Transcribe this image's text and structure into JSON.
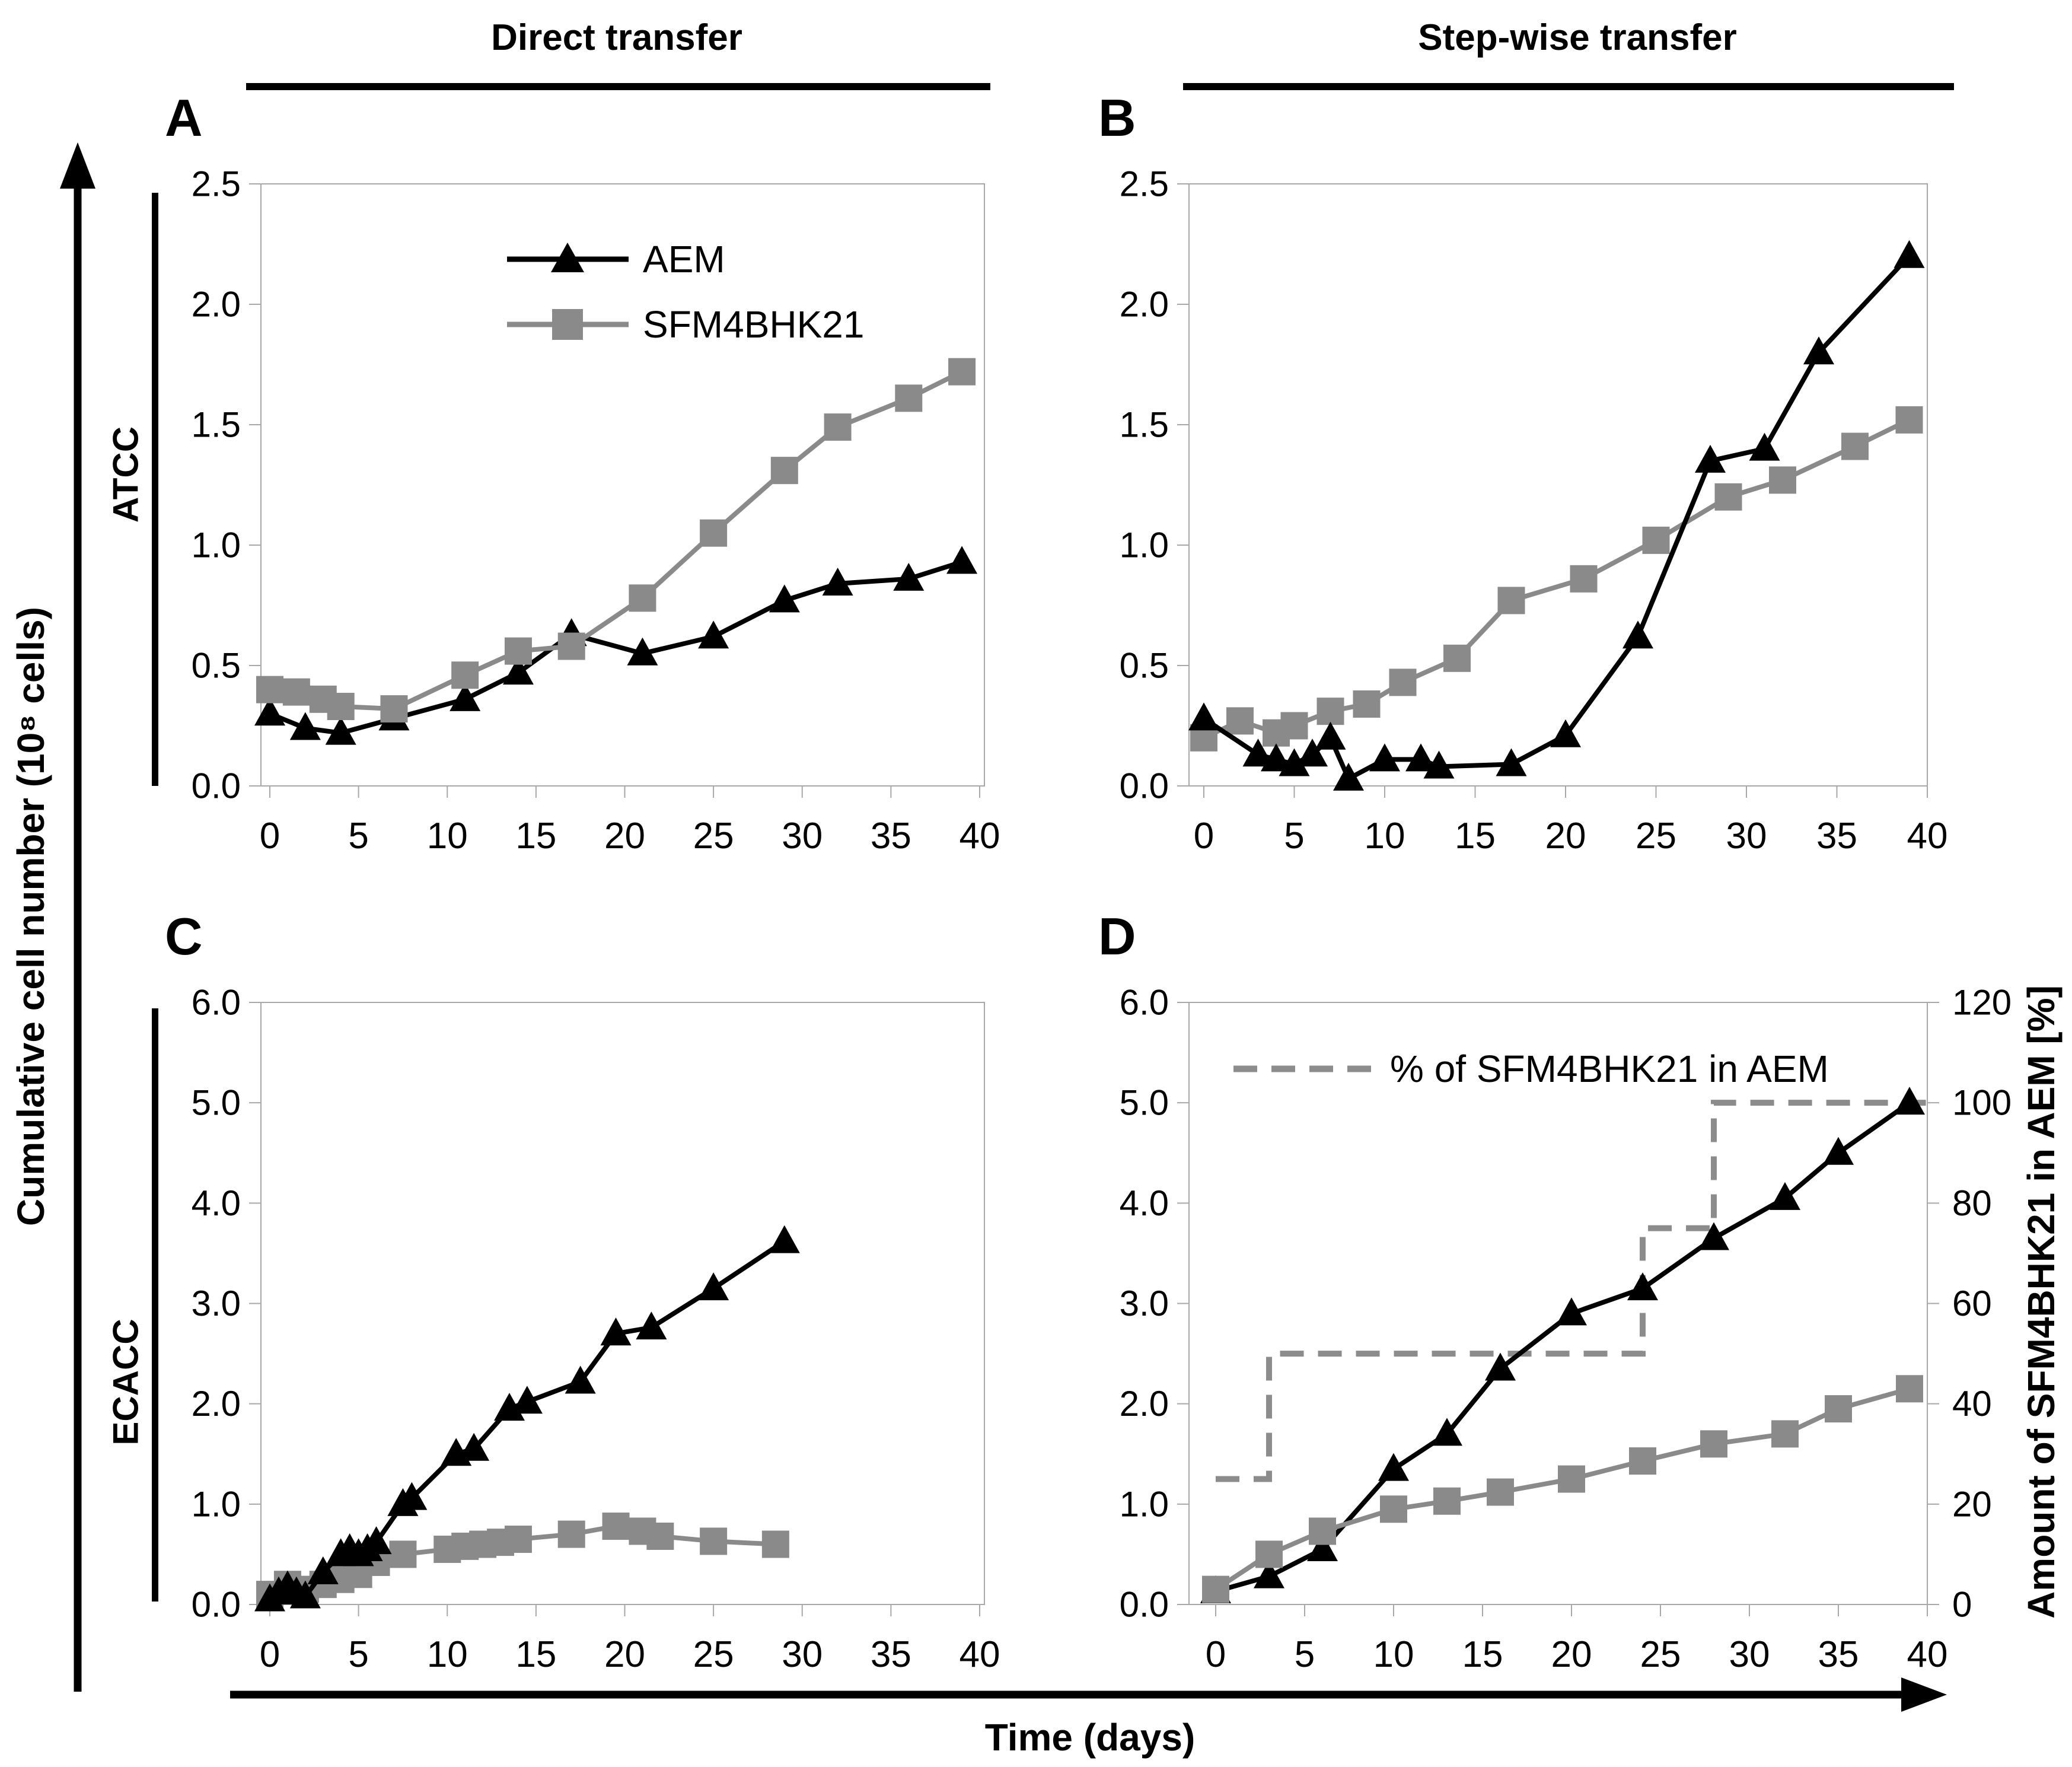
{
  "headers": {
    "left": "Direct transfer",
    "right": "Step-wise transfer"
  },
  "axis_labels": {
    "y_left": "Cumulative cell number (10⁸ cells)",
    "x_bottom": "Time (days)",
    "row_top": "ATCC",
    "row_bottom": "ECACC",
    "d_right": "Amount of SFM4BHK21 in AEM [%]"
  },
  "colors": {
    "black": "#000000",
    "gray": "#8a8a8a",
    "frame": "#a8a8a8",
    "dashed_gray": "#8c8c8c"
  },
  "chart_data": [
    {
      "id": "A",
      "type": "line",
      "row_label": "ATCC",
      "column_title": "Direct transfer",
      "xlabel": "Time (days)",
      "ylabel": "Cumulative cell number (10^8 cells)",
      "xlim": [
        0,
        40
      ],
      "ylim": [
        0,
        2.5
      ],
      "x_ticks": [
        0,
        5,
        10,
        15,
        20,
        25,
        30,
        35,
        40
      ],
      "y_ticks": [
        "0.0",
        "0.5",
        "1.0",
        "1.5",
        "2.0",
        "2.5"
      ],
      "grid": false,
      "legend_position": "upper-right-inside",
      "series": [
        {
          "name": "AEM",
          "marker": "triangle",
          "color": "#000000",
          "points": [
            [
              0,
              0.3
            ],
            [
              2,
              0.24
            ],
            [
              4,
              0.22
            ],
            [
              7,
              0.28
            ],
            [
              11,
              0.36
            ],
            [
              14,
              0.47
            ],
            [
              17,
              0.63
            ],
            [
              21,
              0.55
            ],
            [
              25,
              0.62
            ],
            [
              29,
              0.77
            ],
            [
              32,
              0.84
            ],
            [
              36,
              0.86
            ],
            [
              39,
              0.93
            ]
          ]
        },
        {
          "name": "SFM4BHK21",
          "marker": "square",
          "color": "#8a8a8a",
          "points": [
            [
              0,
              0.4
            ],
            [
              1.5,
              0.39
            ],
            [
              3,
              0.36
            ],
            [
              4,
              0.33
            ],
            [
              7,
              0.32
            ],
            [
              11,
              0.46
            ],
            [
              14,
              0.56
            ],
            [
              17,
              0.58
            ],
            [
              21,
              0.78
            ],
            [
              25,
              1.05
            ],
            [
              29,
              1.31
            ],
            [
              32,
              1.49
            ],
            [
              36,
              1.61
            ],
            [
              39,
              1.72
            ]
          ]
        }
      ]
    },
    {
      "id": "B",
      "type": "line",
      "row_label": "ATCC",
      "column_title": "Step-wise transfer",
      "xlabel": "Time (days)",
      "ylabel": "Cumulative cell number (10^8 cells)",
      "xlim": [
        0,
        40
      ],
      "ylim": [
        0,
        2.5
      ],
      "x_ticks": [
        0,
        5,
        10,
        15,
        20,
        25,
        30,
        35,
        40
      ],
      "y_ticks": [
        "0.0",
        "0.5",
        "1.0",
        "1.5",
        "2.0",
        "2.5"
      ],
      "grid": false,
      "series": [
        {
          "name": "SFM4BHK21",
          "marker": "square",
          "color": "#8a8a8a",
          "points": [
            [
              0,
              0.2
            ],
            [
              2,
              0.27
            ],
            [
              4,
              0.22
            ],
            [
              5,
              0.25
            ],
            [
              7,
              0.31
            ],
            [
              9,
              0.34
            ],
            [
              11,
              0.43
            ],
            [
              14,
              0.53
            ],
            [
              17,
              0.77
            ],
            [
              21,
              0.86
            ],
            [
              25,
              1.02
            ],
            [
              29,
              1.2
            ],
            [
              32,
              1.27
            ],
            [
              36,
              1.41
            ],
            [
              39,
              1.52
            ]
          ]
        },
        {
          "name": "AEM",
          "marker": "triangle",
          "color": "#000000",
          "points": [
            [
              0,
              0.28
            ],
            [
              3,
              0.13
            ],
            [
              4,
              0.11
            ],
            [
              5,
              0.09
            ],
            [
              6,
              0.13
            ],
            [
              7,
              0.2
            ],
            [
              8,
              0.03
            ],
            [
              10,
              0.11
            ],
            [
              12,
              0.11
            ],
            [
              13,
              0.08
            ],
            [
              17,
              0.09
            ],
            [
              20,
              0.21
            ],
            [
              24,
              0.62
            ],
            [
              28,
              1.35
            ],
            [
              31,
              1.4
            ],
            [
              34,
              1.8
            ],
            [
              39,
              2.2
            ]
          ]
        }
      ]
    },
    {
      "id": "C",
      "type": "line",
      "row_label": "ECACC",
      "column_title": "Direct transfer",
      "xlabel": "Time (days)",
      "ylabel": "Cumulative cell number (10^8 cells)",
      "xlim": [
        0,
        40
      ],
      "ylim": [
        0,
        6.0
      ],
      "x_ticks": [
        0,
        5,
        10,
        15,
        20,
        25,
        30,
        35,
        40
      ],
      "y_ticks": [
        "0.0",
        "1.0",
        "2.0",
        "3.0",
        "4.0",
        "5.0",
        "6.0"
      ],
      "grid": false,
      "series": [
        {
          "name": "SFM4BHK21",
          "marker": "square",
          "color": "#8a8a8a",
          "points": [
            [
              0,
              0.1
            ],
            [
              1,
              0.2
            ],
            [
              2,
              0.15
            ],
            [
              3,
              0.2
            ],
            [
              4,
              0.25
            ],
            [
              5,
              0.3
            ],
            [
              6,
              0.42
            ],
            [
              7.5,
              0.5
            ],
            [
              10,
              0.55
            ],
            [
              11,
              0.58
            ],
            [
              12,
              0.6
            ],
            [
              13,
              0.62
            ],
            [
              14,
              0.65
            ],
            [
              17,
              0.7
            ],
            [
              19.5,
              0.78
            ],
            [
              21,
              0.73
            ],
            [
              22,
              0.68
            ],
            [
              25,
              0.63
            ],
            [
              28.5,
              0.6
            ]
          ]
        },
        {
          "name": "AEM",
          "marker": "triangle",
          "color": "#000000",
          "points": [
            [
              0,
              0.05
            ],
            [
              0.5,
              0.12
            ],
            [
              1,
              0.18
            ],
            [
              1.5,
              0.12
            ],
            [
              2,
              0.08
            ],
            [
              3,
              0.32
            ],
            [
              4,
              0.5
            ],
            [
              4.5,
              0.55
            ],
            [
              5,
              0.5
            ],
            [
              5.5,
              0.55
            ],
            [
              6,
              0.62
            ],
            [
              7.5,
              1.0
            ],
            [
              8,
              1.06
            ],
            [
              10.5,
              1.5
            ],
            [
              11.5,
              1.55
            ],
            [
              13.5,
              1.95
            ],
            [
              14.5,
              2.02
            ],
            [
              17.5,
              2.22
            ],
            [
              19.5,
              2.7
            ],
            [
              21.5,
              2.76
            ],
            [
              25,
              3.15
            ],
            [
              29,
              3.62
            ]
          ]
        }
      ]
    },
    {
      "id": "D",
      "type": "line",
      "row_label": "ECACC",
      "column_title": "Step-wise transfer",
      "xlabel": "Time (days)",
      "ylabel": "Cumulative cell number (10^8 cells)",
      "xlim": [
        0,
        40
      ],
      "ylim": [
        0,
        6.0
      ],
      "x_ticks": [
        0,
        5,
        10,
        15,
        20,
        25,
        30,
        35,
        40
      ],
      "y_ticks": [
        "0.0",
        "1.0",
        "2.0",
        "3.0",
        "4.0",
        "5.0",
        "6.0"
      ],
      "grid": false,
      "right_axis": {
        "label": "Amount of SFM4BHK21 in AEM [%]",
        "ticks": [
          "0",
          "20",
          "40",
          "60",
          "80",
          "100",
          "120"
        ],
        "lim": [
          0,
          120
        ]
      },
      "step_series": {
        "name": "% of SFM4BHK21 in AEM",
        "axis": "right",
        "style": "dashed",
        "color": "#8c8c8c",
        "points": [
          [
            0,
            25
          ],
          [
            3,
            25
          ],
          [
            3,
            50
          ],
          [
            24,
            50
          ],
          [
            24,
            75
          ],
          [
            28,
            75
          ],
          [
            28,
            100
          ],
          [
            40,
            100
          ]
        ]
      },
      "series": [
        {
          "name": "AEM",
          "marker": "triangle",
          "color": "#000000",
          "points": [
            [
              0,
              0.13
            ],
            [
              3,
              0.28
            ],
            [
              6,
              0.55
            ],
            [
              10,
              1.35
            ],
            [
              13,
              1.7
            ],
            [
              16,
              2.35
            ],
            [
              20,
              2.9
            ],
            [
              24,
              3.15
            ],
            [
              28,
              3.65
            ],
            [
              32,
              4.05
            ],
            [
              35,
              4.5
            ],
            [
              39,
              5.0
            ]
          ]
        },
        {
          "name": "SFM4BHK21",
          "marker": "square",
          "color": "#8a8a8a",
          "points": [
            [
              0,
              0.15
            ],
            [
              3,
              0.5
            ],
            [
              6,
              0.73
            ],
            [
              10,
              0.95
            ],
            [
              13,
              1.03
            ],
            [
              16,
              1.12
            ],
            [
              20,
              1.25
            ],
            [
              24,
              1.43
            ],
            [
              28,
              1.6
            ],
            [
              32,
              1.7
            ],
            [
              35,
              1.95
            ],
            [
              39,
              2.15
            ]
          ]
        }
      ]
    }
  ]
}
